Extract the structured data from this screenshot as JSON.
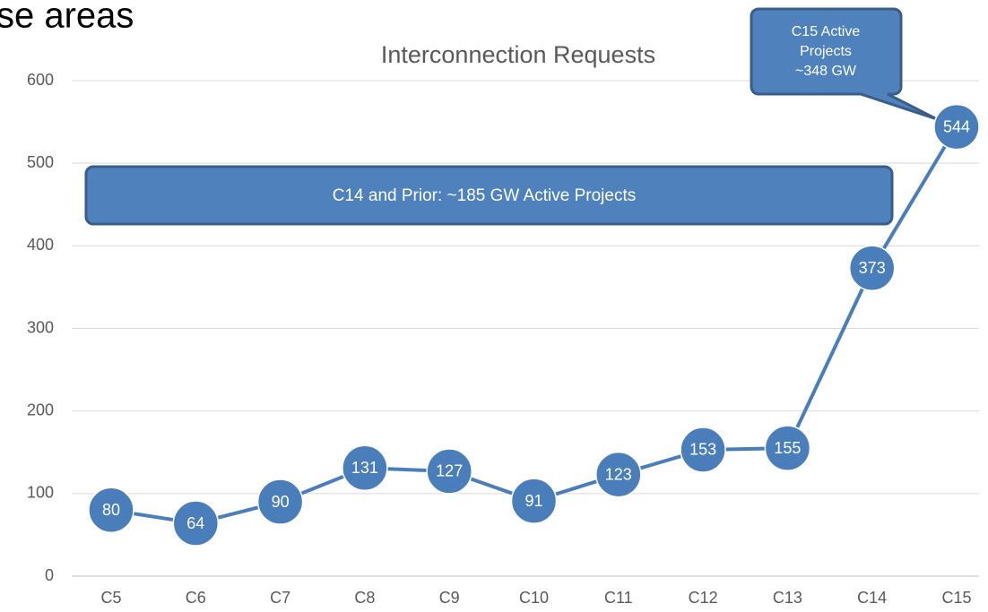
{
  "slide_heading": "se areas",
  "chart_data": {
    "type": "line",
    "title": "Interconnection Requests",
    "categories": [
      "C5",
      "C6",
      "C7",
      "C8",
      "C9",
      "C10",
      "C11",
      "C12",
      "C13",
      "C14",
      "C15"
    ],
    "series": [
      {
        "name": "Interconnection Requests",
        "color": "#4a7ebb",
        "values": [
          80,
          64,
          90,
          131,
          127,
          91,
          123,
          153,
          155,
          373,
          544
        ]
      }
    ],
    "ylim": [
      0,
      600
    ],
    "yticks": [
      0,
      100,
      200,
      300,
      400,
      500,
      600
    ],
    "grid": true,
    "annotations": [
      {
        "text": "C14 and Prior: ~185 GW Active Projects"
      },
      {
        "lines": [
          "C15 Active",
          "Projects",
          "~348 GW"
        ]
      }
    ]
  }
}
